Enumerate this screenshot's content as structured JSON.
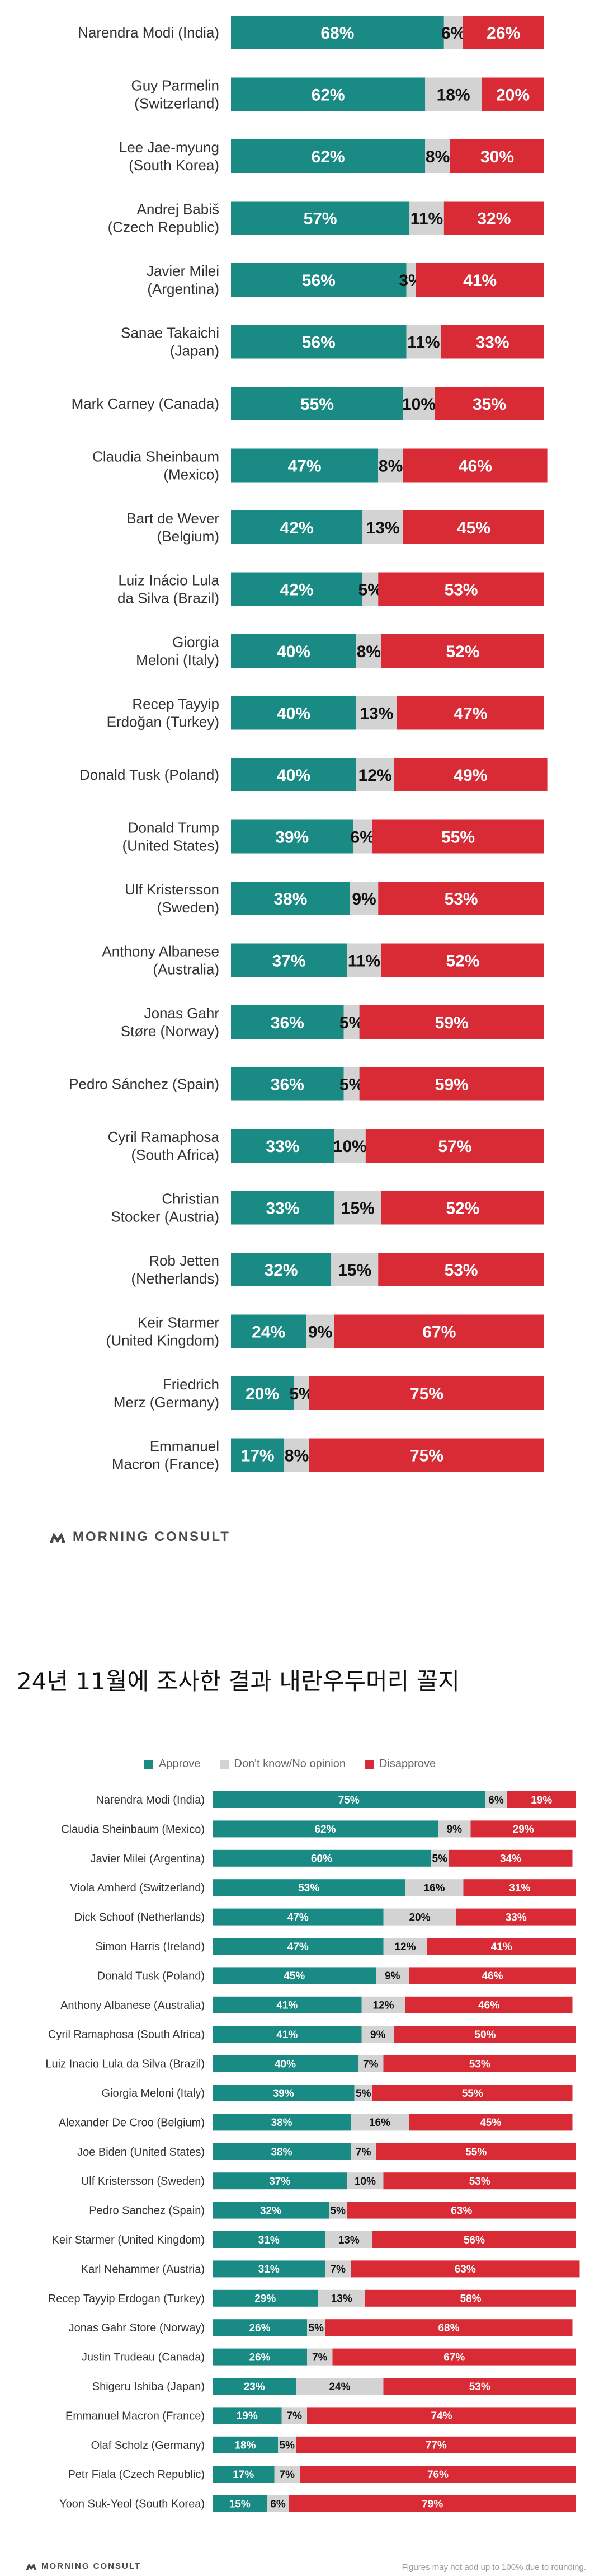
{
  "colors": {
    "approve": "#1a8a84",
    "no_opinion": "#d3d3d3",
    "disapprove": "#d92b35",
    "brand_text": "#4a4a4a"
  },
  "brand": {
    "name": "MORNING CONSULT",
    "icon": "morning-consult-logo"
  },
  "caption": "24년 11월에 조사한 결과 내란우두머리 꼴지",
  "legend": {
    "approve": "Approve",
    "no_opinion": "Don't know/No opinion",
    "disapprove": "Disapprove"
  },
  "footnote": "Figures may not add up to 100% due to rounding.",
  "chart_data": [
    {
      "type": "bar",
      "stacked": true,
      "orientation": "horizontal",
      "xlim": [
        0,
        100
      ],
      "series_names": [
        "Approve",
        "Don't know/No opinion",
        "Disapprove"
      ],
      "categories": [
        "Narendra Modi (India)",
        "Guy Parmelin (Switzerland)",
        "Lee Jae-myung (South Korea)",
        "Andrej Babiš (Czech Republic)",
        "Javier Milei (Argentina)",
        "Sanae Takaichi (Japan)",
        "Mark Carney (Canada)",
        "Claudia Sheinbaum (Mexico)",
        "Bart de Wever (Belgium)",
        "Luiz Inácio Lula da Silva (Brazil)",
        "Giorgia Meloni (Italy)",
        "Recep Tayyip Erdoğan (Turkey)",
        "Donald Tusk (Poland)",
        "Donald Trump (United States)",
        "Ulf Kristersson (Sweden)",
        "Anthony Albanese (Australia)",
        "Jonas Gahr Støre (Norway)",
        "Pedro Sánchez (Spain)",
        "Cyril Ramaphosa (South Africa)",
        "Christian Stocker (Austria)",
        "Rob Jetten (Netherlands)",
        "Keir Starmer (United Kingdom)",
        "Friedrich Merz (Germany)",
        "Emmanuel Macron (France)"
      ],
      "approve": [
        68,
        62,
        62,
        57,
        56,
        56,
        55,
        47,
        42,
        42,
        40,
        40,
        40,
        39,
        38,
        37,
        36,
        36,
        33,
        33,
        32,
        24,
        20,
        17
      ],
      "no_opinion": [
        6,
        18,
        8,
        11,
        3,
        11,
        10,
        8,
        13,
        5,
        8,
        13,
        12,
        6,
        9,
        11,
        5,
        5,
        10,
        15,
        15,
        9,
        5,
        8
      ],
      "disapprove": [
        26,
        20,
        30,
        32,
        41,
        33,
        35,
        46,
        45,
        53,
        52,
        47,
        49,
        55,
        53,
        52,
        59,
        59,
        57,
        52,
        53,
        67,
        75,
        75
      ]
    },
    {
      "type": "bar",
      "stacked": true,
      "orientation": "horizontal",
      "xlim": [
        0,
        100
      ],
      "series_names": [
        "Approve",
        "Don't know/No opinion",
        "Disapprove"
      ],
      "categories": [
        "Narendra Modi (India)",
        "Claudia Sheinbaum (Mexico)",
        "Javier Milei (Argentina)",
        "Viola Amherd (Switzerland)",
        "Dick Schoof (Netherlands)",
        "Simon Harris (Ireland)",
        "Donald Tusk (Poland)",
        "Anthony Albanese (Australia)",
        "Cyril Ramaphosa (South Africa)",
        "Luiz Inacio Lula da Silva (Brazil)",
        "Giorgia Meloni (Italy)",
        "Alexander De Croo (Belgium)",
        "Joe Biden (United States)",
        "Ulf Kristersson (Sweden)",
        "Pedro Sanchez (Spain)",
        "Keir Starmer (United Kingdom)",
        "Karl Nehammer (Austria)",
        "Recep Tayyip Erdogan (Turkey)",
        "Jonas Gahr Store (Norway)",
        "Justin Trudeau (Canada)",
        "Shigeru Ishiba (Japan)",
        "Emmanuel Macron (France)",
        "Olaf Scholz (Germany)",
        "Petr Fiala (Czech Republic)",
        "Yoon Suk-Yeol (South Korea)"
      ],
      "approve": [
        75,
        62,
        60,
        53,
        47,
        47,
        45,
        41,
        41,
        40,
        39,
        38,
        38,
        37,
        32,
        31,
        31,
        29,
        26,
        26,
        23,
        19,
        18,
        17,
        15
      ],
      "no_opinion": [
        6,
        9,
        5,
        16,
        20,
        12,
        9,
        12,
        9,
        7,
        5,
        16,
        7,
        10,
        5,
        13,
        7,
        13,
        5,
        7,
        24,
        7,
        5,
        7,
        6
      ],
      "disapprove": [
        19,
        29,
        34,
        31,
        33,
        41,
        46,
        46,
        50,
        53,
        55,
        45,
        55,
        53,
        63,
        56,
        63,
        58,
        68,
        67,
        53,
        74,
        77,
        76,
        79
      ]
    }
  ]
}
